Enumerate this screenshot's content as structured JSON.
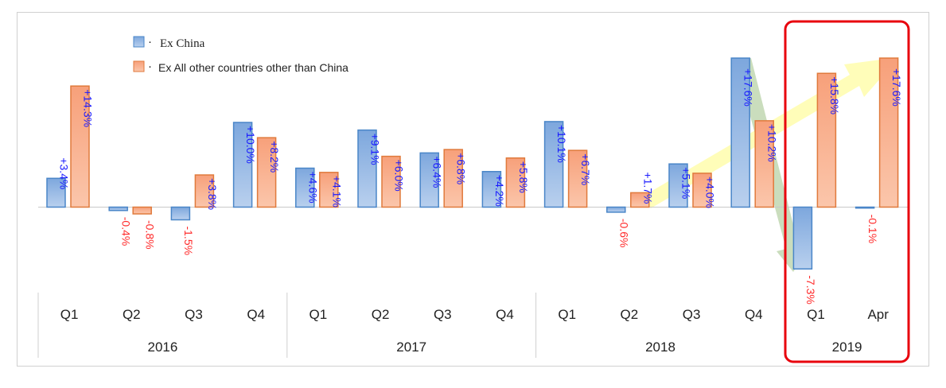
{
  "chart_data": {
    "type": "bar",
    "categories": [
      "Q1",
      "Q2",
      "Q3",
      "Q4",
      "Q1",
      "Q2",
      "Q3",
      "Q4",
      "Q1",
      "Q2",
      "Q3",
      "Q4",
      "Q1",
      "Apr"
    ],
    "groups": [
      {
        "label": "2016",
        "span": 4
      },
      {
        "label": "2017",
        "span": 4
      },
      {
        "label": "2018",
        "span": 4
      },
      {
        "label": "2019",
        "span": 2
      }
    ],
    "series": [
      {
        "name": "Ex China",
        "color": "#8fb4e3",
        "stroke": "#4a86c8",
        "values": [
          3.4,
          -0.4,
          -1.5,
          10.0,
          4.6,
          9.1,
          6.4,
          4.2,
          10.1,
          -0.6,
          5.1,
          17.6,
          -7.3,
          -0.1
        ],
        "labels": [
          "+3.4%",
          "-0.4%",
          "-1.5%",
          "+10.0%",
          "+4.6%",
          "+9.1%",
          "+6.4%",
          "+4.2%",
          "+10.1%",
          "-0.6%",
          "+5.1%",
          "+17.6%",
          "-7.3%",
          "-0.1%"
        ]
      },
      {
        "name": "Ex All other countries other than China",
        "color": "#f7b08e",
        "stroke": "#e07a3c",
        "values": [
          14.3,
          -0.8,
          3.8,
          8.2,
          4.1,
          6.0,
          6.8,
          5.8,
          6.7,
          1.7,
          4.0,
          10.2,
          15.8,
          17.6
        ],
        "labels": [
          "+14.3%",
          "-0.8%",
          "+3.8%",
          "+8.2%",
          "+4.1%",
          "+6.0%",
          "+6.8%",
          "+5.8%",
          "+6.7%",
          "+1.7%",
          "+4.0%",
          "+10.2%",
          "+15.8%",
          "+17.6%"
        ]
      }
    ],
    "positive_label_color": "#1a1aff",
    "negative_label_color": "#ff2a2a",
    "highlight_color": "#e8000d",
    "grid": false,
    "legend_position": "top-left"
  }
}
